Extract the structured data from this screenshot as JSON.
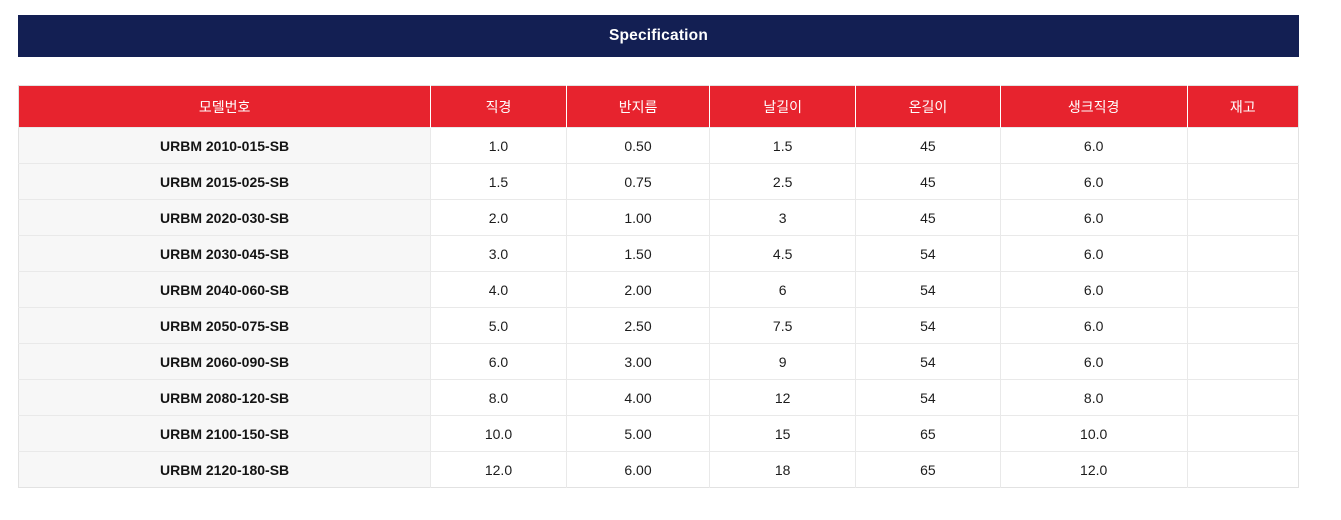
{
  "colors": {
    "navy": "#131F53",
    "red": "#E7232E",
    "line": "#E9E9E9",
    "outer": "#E2E2E2",
    "model-bg": "#F7F7F7",
    "text": "#1C1C1C",
    "header-text": "#FFFFFF"
  },
  "banner": {
    "title": "Specification"
  },
  "table": {
    "columns": [
      "모델번호",
      "직경",
      "반지름",
      "날길이",
      "온길이",
      "생크직경",
      "재고"
    ],
    "rows": [
      {
        "model": "URBM 2010-015-SB",
        "diameter": "1.0",
        "radius": "0.50",
        "flute_length": "1.5",
        "overall_length": "45",
        "shank_diameter": "6.0",
        "stock": ""
      },
      {
        "model": "URBM 2015-025-SB",
        "diameter": "1.5",
        "radius": "0.75",
        "flute_length": "2.5",
        "overall_length": "45",
        "shank_diameter": "6.0",
        "stock": ""
      },
      {
        "model": "URBM 2020-030-SB",
        "diameter": "2.0",
        "radius": "1.00",
        "flute_length": "3",
        "overall_length": "45",
        "shank_diameter": "6.0",
        "stock": ""
      },
      {
        "model": "URBM 2030-045-SB",
        "diameter": "3.0",
        "radius": "1.50",
        "flute_length": "4.5",
        "overall_length": "54",
        "shank_diameter": "6.0",
        "stock": ""
      },
      {
        "model": "URBM 2040-060-SB",
        "diameter": "4.0",
        "radius": "2.00",
        "flute_length": "6",
        "overall_length": "54",
        "shank_diameter": "6.0",
        "stock": ""
      },
      {
        "model": "URBM 2050-075-SB",
        "diameter": "5.0",
        "radius": "2.50",
        "flute_length": "7.5",
        "overall_length": "54",
        "shank_diameter": "6.0",
        "stock": ""
      },
      {
        "model": "URBM 2060-090-SB",
        "diameter": "6.0",
        "radius": "3.00",
        "flute_length": "9",
        "overall_length": "54",
        "shank_diameter": "6.0",
        "stock": ""
      },
      {
        "model": "URBM 2080-120-SB",
        "diameter": "8.0",
        "radius": "4.00",
        "flute_length": "12",
        "overall_length": "54",
        "shank_diameter": "8.0",
        "stock": ""
      },
      {
        "model": "URBM 2100-150-SB",
        "diameter": "10.0",
        "radius": "5.00",
        "flute_length": "15",
        "overall_length": "65",
        "shank_diameter": "10.0",
        "stock": ""
      },
      {
        "model": "URBM 2120-180-SB",
        "diameter": "12.0",
        "radius": "6.00",
        "flute_length": "18",
        "overall_length": "65",
        "shank_diameter": "12.0",
        "stock": ""
      }
    ]
  }
}
